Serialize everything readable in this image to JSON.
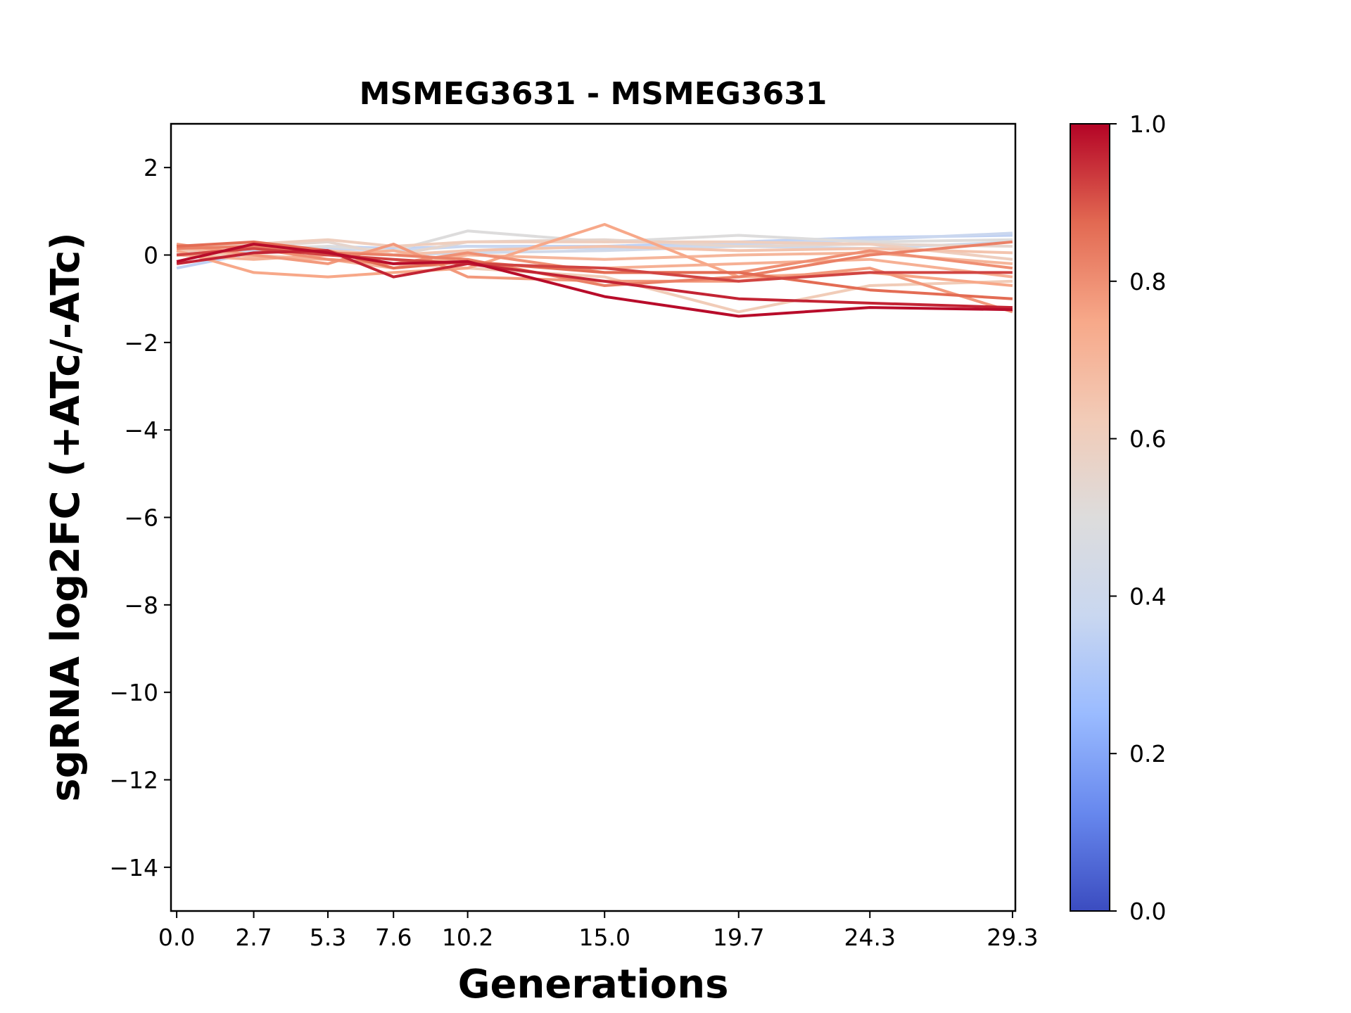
{
  "chart_data": {
    "type": "line",
    "title": "MSMEG3631 - MSMEG3631",
    "xlabel": "Generations",
    "ylabel": "sgRNA log2FC (+ATc/-ATc)",
    "x": [
      0.0,
      2.7,
      5.3,
      7.6,
      10.2,
      15.0,
      19.7,
      24.3,
      29.3
    ],
    "x_tick_labels": [
      "0.0",
      "2.7",
      "5.3",
      "7.6",
      "10.2",
      "15.0",
      "19.7",
      "24.3",
      "29.3"
    ],
    "xlim": [
      -0.2,
      29.4
    ],
    "ylim": [
      -15,
      3
    ],
    "y_ticks": [
      2,
      0,
      -2,
      -4,
      -6,
      -8,
      -10,
      -12,
      -14
    ],
    "y_tick_labels": [
      "2",
      "0",
      "−2",
      "−4",
      "−6",
      "−8",
      "−10",
      "−12",
      "−14"
    ],
    "grid": false,
    "colorbar": {
      "colormap": "coolwarm",
      "range": [
        0.0,
        1.0
      ],
      "ticks": [
        0.0,
        0.2,
        0.4,
        0.6,
        0.8,
        1.0
      ],
      "tick_labels": [
        "0.0",
        "0.2",
        "0.4",
        "0.6",
        "0.8",
        "1.0"
      ],
      "stops": [
        "#3b4cc0",
        "#6788ee",
        "#9abbff",
        "#c9d7f0",
        "#dddcdc",
        "#f2cbb7",
        "#f7a889",
        "#e26952",
        "#b40426"
      ]
    },
    "series": [
      {
        "color_value": 0.35,
        "values": [
          -0.3,
          0.05,
          0.2,
          0.15,
          0.2,
          0.2,
          0.3,
          0.4,
          0.45
        ]
      },
      {
        "color_value": 0.38,
        "values": [
          0.0,
          0.1,
          0.15,
          0.1,
          0.2,
          0.15,
          0.25,
          0.35,
          0.5
        ]
      },
      {
        "color_value": 0.42,
        "values": [
          0.1,
          0.05,
          0.1,
          0.0,
          0.05,
          0.1,
          0.2,
          0.15,
          0.3
        ]
      },
      {
        "color_value": 0.5,
        "values": [
          0.2,
          0.15,
          0.2,
          0.1,
          0.55,
          0.3,
          0.45,
          0.3,
          0.35
        ]
      },
      {
        "color_value": 0.55,
        "values": [
          0.05,
          0.2,
          0.3,
          0.0,
          0.3,
          0.35,
          0.2,
          0.25,
          0.2
        ]
      },
      {
        "color_value": 0.6,
        "values": [
          0.15,
          0.25,
          0.35,
          0.2,
          0.3,
          0.3,
          0.3,
          0.25,
          -0.1
        ]
      },
      {
        "color_value": 0.62,
        "values": [
          0.0,
          0.0,
          -0.1,
          -0.2,
          -0.3,
          -0.5,
          -1.3,
          -0.7,
          -0.6
        ]
      },
      {
        "color_value": 0.65,
        "values": [
          0.1,
          0.15,
          0.1,
          0.0,
          0.1,
          0.2,
          0.1,
          0.15,
          0.05
        ]
      },
      {
        "color_value": 0.7,
        "values": [
          0.2,
          -0.05,
          -0.1,
          -0.3,
          0.0,
          -0.1,
          0.0,
          0.05,
          -0.2
        ]
      },
      {
        "color_value": 0.72,
        "values": [
          0.0,
          -0.1,
          0.0,
          0.1,
          -0.2,
          -0.3,
          -0.2,
          -0.1,
          -0.5
        ]
      },
      {
        "color_value": 0.75,
        "values": [
          0.1,
          -0.4,
          -0.5,
          -0.4,
          -0.3,
          0.7,
          -0.5,
          -0.4,
          -0.7
        ]
      },
      {
        "color_value": 0.78,
        "values": [
          0.25,
          0.0,
          -0.2,
          0.25,
          -0.5,
          -0.6,
          -0.6,
          -0.3,
          -1.3
        ]
      },
      {
        "color_value": 0.8,
        "values": [
          0.0,
          0.15,
          -0.1,
          -0.2,
          0.05,
          -0.4,
          -0.4,
          0.1,
          -0.3
        ]
      },
      {
        "color_value": 0.83,
        "values": [
          0.15,
          0.2,
          0.05,
          0.0,
          -0.1,
          -0.7,
          -0.5,
          0.0,
          0.3
        ]
      },
      {
        "color_value": 0.87,
        "values": [
          0.2,
          0.3,
          0.1,
          -0.3,
          -0.15,
          -0.4,
          -0.4,
          -0.8,
          -1.0
        ]
      },
      {
        "color_value": 0.92,
        "values": [
          0.0,
          0.15,
          0.0,
          -0.1,
          -0.2,
          -0.3,
          -0.6,
          -0.4,
          -0.4
        ]
      },
      {
        "color_value": 0.96,
        "values": [
          -0.2,
          0.05,
          0.1,
          -0.5,
          -0.2,
          -0.6,
          -1.0,
          -1.1,
          -1.2
        ]
      },
      {
        "color_value": 0.99,
        "values": [
          -0.15,
          0.25,
          0.05,
          -0.2,
          -0.15,
          -0.95,
          -1.4,
          -1.2,
          -1.25
        ]
      }
    ]
  }
}
